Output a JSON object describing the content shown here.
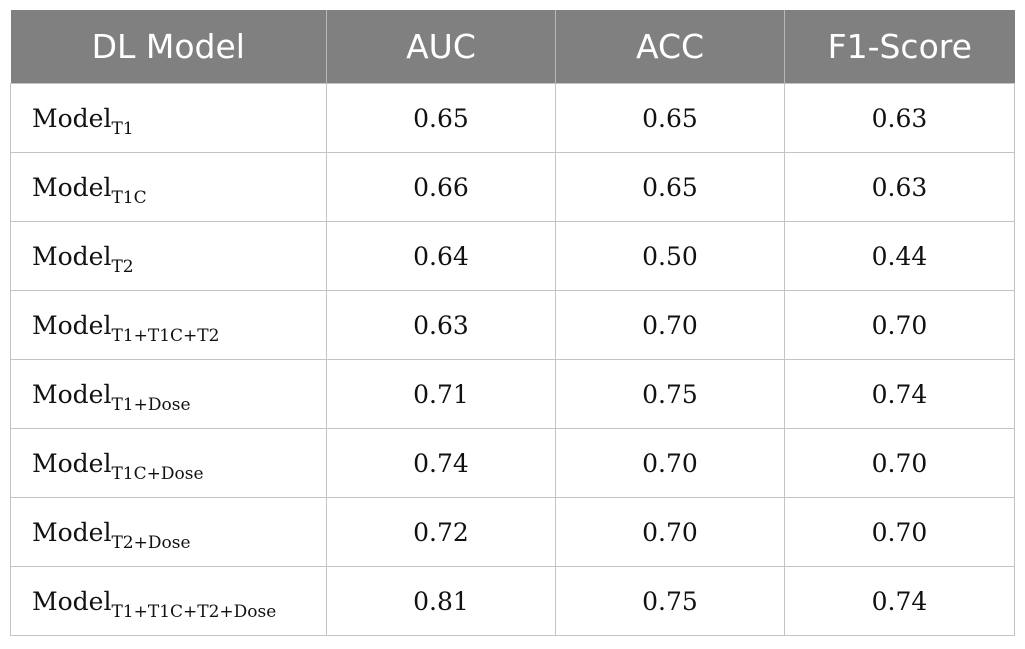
{
  "table": {
    "headers": [
      "DL Model",
      "AUC",
      "ACC",
      "F1-Score"
    ],
    "rows": [
      {
        "model": "Model",
        "sub": "T1",
        "auc": "0.65",
        "acc": "0.65",
        "f1": "0.63"
      },
      {
        "model": "Model",
        "sub": "T1C",
        "auc": "0.66",
        "acc": "0.65",
        "f1": "0.63"
      },
      {
        "model": "Model",
        "sub": "T2",
        "auc": "0.64",
        "acc": "0.50",
        "f1": "0.44"
      },
      {
        "model": "Model",
        "sub": "T1+T1C+T2",
        "auc": "0.63",
        "acc": "0.70",
        "f1": "0.70"
      },
      {
        "model": "Model",
        "sub": "T1+Dose",
        "auc": "0.71",
        "acc": "0.75",
        "f1": "0.74"
      },
      {
        "model": "Model",
        "sub": "T1C+Dose",
        "auc": "0.74",
        "acc": "0.70",
        "f1": "0.70"
      },
      {
        "model": "Model",
        "sub": "T2+Dose",
        "auc": "0.72",
        "acc": "0.70",
        "f1": "0.70"
      },
      {
        "model": "Model",
        "sub": "T1+T1C+T2+Dose",
        "auc": "0.81",
        "acc": "0.75",
        "f1": "0.74"
      }
    ]
  },
  "colors": {
    "header_bg": "#808080",
    "header_text": "#ffffff",
    "grid": "#c4c4c4"
  }
}
